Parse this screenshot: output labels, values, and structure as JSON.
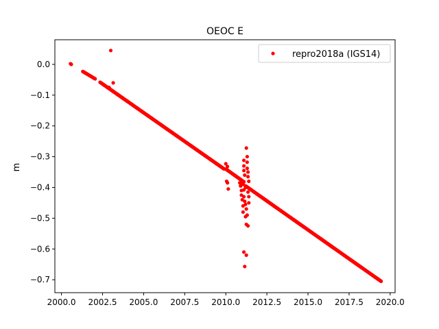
{
  "chart_data": {
    "type": "scatter",
    "title": "OEOC E",
    "xlabel": "",
    "ylabel": "m",
    "xlim": [
      1999.6,
      2020.3
    ],
    "ylim": [
      -0.742,
      0.08
    ],
    "xticks": [
      2000.0,
      2002.5,
      2005.0,
      2007.5,
      2010.0,
      2012.5,
      2015.0,
      2017.5,
      2020.0
    ],
    "xtick_labels": [
      "2000.0",
      "2002.5",
      "2005.0",
      "2007.5",
      "2010.0",
      "2012.5",
      "2015.0",
      "2017.5",
      "2020.0"
    ],
    "yticks": [
      0.0,
      -0.1,
      -0.2,
      -0.3,
      -0.4,
      -0.5,
      -0.6,
      -0.7
    ],
    "ytick_labels": [
      "0.0",
      "−0.1",
      "−0.2",
      "−0.3",
      "−0.4",
      "−0.5",
      "−0.6",
      "−0.7"
    ],
    "grid": false,
    "legend_position": "top-right",
    "series": [
      {
        "name": "repro2018a (IGS14)",
        "color": "#ff0000",
        "marker": "circle",
        "segments": [
          {
            "x0": 2000.55,
            "y0": 0.002,
            "x1": 2000.6,
            "y1": 0.0,
            "n": 3
          },
          {
            "x0": 2001.3,
            "y0": -0.023,
            "x1": 2002.05,
            "y1": -0.047,
            "n": 35
          },
          {
            "x0": 2002.35,
            "y0": -0.058,
            "x1": 2009.9,
            "y1": -0.34,
            "n": 520
          },
          {
            "x0": 2010.0,
            "y0": -0.34,
            "x1": 2011.1,
            "y1": -0.382,
            "n": 60
          },
          {
            "x0": 2011.2,
            "y0": -0.395,
            "x1": 2019.45,
            "y1": -0.705,
            "n": 560
          }
        ],
        "outliers": [
          [
            2003.0,
            0.045
          ],
          [
            2003.15,
            -0.06
          ],
          [
            2002.9,
            -0.075
          ],
          [
            2010.0,
            -0.323
          ],
          [
            2010.1,
            -0.332
          ],
          [
            2010.05,
            -0.38
          ],
          [
            2010.1,
            -0.385
          ],
          [
            2010.15,
            -0.405
          ],
          [
            2010.8,
            -0.37
          ],
          [
            2010.85,
            -0.385
          ],
          [
            2010.9,
            -0.395
          ],
          [
            2010.95,
            -0.41
          ],
          [
            2010.95,
            -0.425
          ],
          [
            2011.0,
            -0.39
          ],
          [
            2011.0,
            -0.44
          ],
          [
            2011.05,
            -0.46
          ],
          [
            2011.05,
            -0.48
          ],
          [
            2011.1,
            -0.312
          ],
          [
            2011.1,
            -0.33
          ],
          [
            2011.1,
            -0.345
          ],
          [
            2011.15,
            -0.36
          ],
          [
            2011.1,
            -0.408
          ],
          [
            2011.1,
            -0.43
          ],
          [
            2011.15,
            -0.445
          ],
          [
            2011.2,
            -0.455
          ],
          [
            2011.25,
            -0.272
          ],
          [
            2011.3,
            -0.3
          ],
          [
            2011.3,
            -0.318
          ],
          [
            2011.3,
            -0.338
          ],
          [
            2011.35,
            -0.35
          ],
          [
            2011.35,
            -0.365
          ],
          [
            2011.4,
            -0.38
          ],
          [
            2011.35,
            -0.415
          ],
          [
            2011.4,
            -0.43
          ],
          [
            2011.4,
            -0.45
          ],
          [
            2011.25,
            -0.47
          ],
          [
            2011.3,
            -0.49
          ],
          [
            2011.2,
            -0.495
          ],
          [
            2011.25,
            -0.52
          ],
          [
            2011.35,
            -0.525
          ],
          [
            2011.1,
            -0.61
          ],
          [
            2011.25,
            -0.62
          ],
          [
            2011.15,
            -0.657
          ],
          [
            2011.05,
            -0.39
          ],
          [
            2011.2,
            -0.4
          ]
        ]
      }
    ]
  }
}
